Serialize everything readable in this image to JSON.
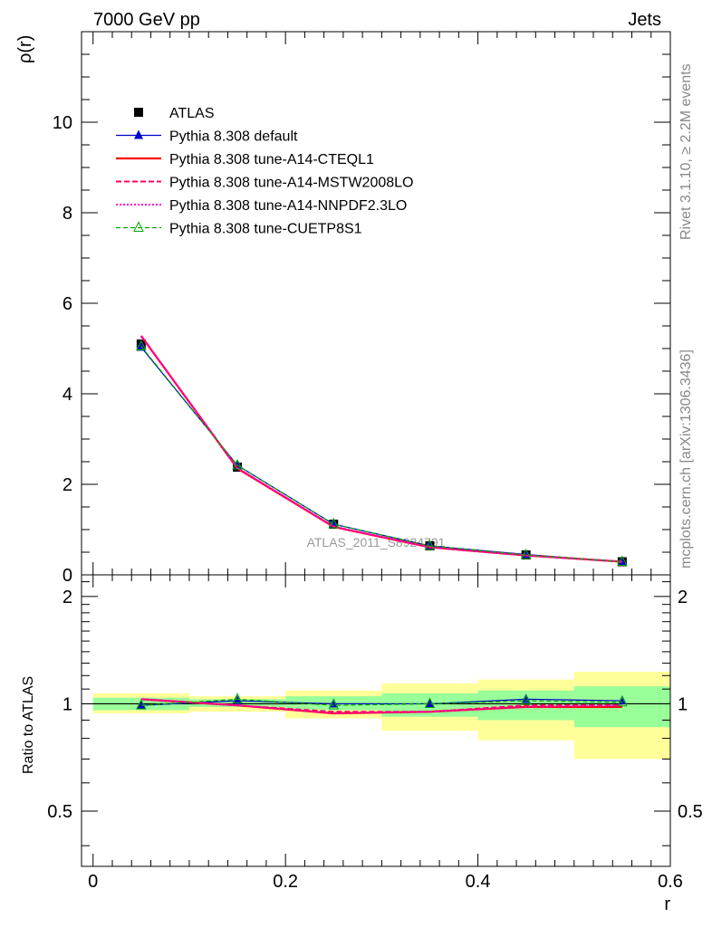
{
  "header": {
    "left": "7000 GeV pp",
    "right": "Jets"
  },
  "side_labels": {
    "rivet": "Rivet 3.1.10, ≥ 2.2M events",
    "mcplots": "mcplots.cern.ch [arXiv:1306.3436]"
  },
  "watermark": "ATLAS_2011_S8924791",
  "chart_data": [
    {
      "type": "line",
      "panel": "main",
      "ylabel": "ρ(r)",
      "xlim": [
        -0.012,
        0.6
      ],
      "ylim": [
        0,
        12
      ],
      "yticks": [
        0,
        2,
        4,
        6,
        8,
        10
      ],
      "ytick_labels": [
        "0",
        "2",
        "4",
        "6",
        "8",
        "10"
      ],
      "x": [
        0.05,
        0.15,
        0.25,
        0.35,
        0.45,
        0.55
      ],
      "series": [
        {
          "name": "ATLAS",
          "color": "#000000",
          "marker": "square",
          "line": "none",
          "values": [
            5.1,
            2.38,
            1.12,
            0.64,
            0.44,
            0.29
          ]
        },
        {
          "name": "Pythia 8.308 default",
          "color": "#0000cc",
          "marker": "triangle",
          "line": "solid",
          "values": [
            5.03,
            2.42,
            1.12,
            0.64,
            0.45,
            0.29
          ]
        },
        {
          "name": "Pythia 8.308 tune-A14-CTEQL1",
          "color": "#ff0000",
          "marker": "none",
          "line": "solid-thick",
          "values": [
            5.28,
            2.35,
            1.06,
            0.61,
            0.43,
            0.29
          ]
        },
        {
          "name": "Pythia 8.308 tune-A14-MSTW2008LO",
          "color": "#ff0066",
          "marker": "none",
          "line": "dashed",
          "values": [
            5.28,
            2.36,
            1.06,
            0.61,
            0.43,
            0.29
          ]
        },
        {
          "name": "Pythia 8.308 tune-A14-NNPDF2.3LO",
          "color": "#ff00cc",
          "marker": "none",
          "line": "dotted",
          "values": [
            5.27,
            2.36,
            1.07,
            0.61,
            0.43,
            0.29
          ]
        },
        {
          "name": "Pythia 8.308 tune-CUETP8S1",
          "color": "#00aa00",
          "marker": "open-triangle",
          "line": "dashed-thin",
          "values": [
            5.05,
            2.42,
            1.12,
            0.64,
            0.44,
            0.29
          ]
        }
      ]
    },
    {
      "type": "line",
      "panel": "ratio",
      "ylabel": "Ratio to ATLAS",
      "xlabel": "r",
      "xlim": [
        -0.012,
        0.6
      ],
      "ylim": [
        0.35,
        2.3
      ],
      "log_y": true,
      "xticks": [
        0,
        0.2,
        0.4,
        0.6
      ],
      "xtick_labels": [
        "0",
        "0.2",
        "0.4",
        "0.6"
      ],
      "yticks": [
        0.5,
        1,
        2
      ],
      "ytick_labels": [
        "0.5",
        "1",
        "2"
      ],
      "x": [
        0.05,
        0.15,
        0.25,
        0.35,
        0.45,
        0.55
      ],
      "bands": {
        "x_edges": [
          0.0,
          0.1,
          0.2,
          0.3,
          0.4,
          0.5,
          0.6
        ],
        "yellow": [
          [
            0.94,
            1.07
          ],
          [
            0.95,
            1.05
          ],
          [
            0.91,
            1.09
          ],
          [
            0.84,
            1.14
          ],
          [
            0.79,
            1.17
          ],
          [
            0.7,
            1.23
          ]
        ],
        "green": [
          [
            0.96,
            1.04
          ],
          [
            0.98,
            1.03
          ],
          [
            0.96,
            1.05
          ],
          [
            0.92,
            1.07
          ],
          [
            0.9,
            1.09
          ],
          [
            0.86,
            1.12
          ]
        ]
      },
      "series": [
        {
          "name": "Pythia 8.308 default",
          "color": "#0000cc",
          "marker": "triangle",
          "line": "solid",
          "values": [
            0.99,
            1.02,
            1.0,
            1.0,
            1.03,
            1.02
          ]
        },
        {
          "name": "Pythia 8.308 tune-A14-CTEQL1",
          "color": "#ff0000",
          "marker": "none",
          "line": "solid-thick",
          "values": [
            1.03,
            0.99,
            0.94,
            0.95,
            0.98,
            0.98
          ]
        },
        {
          "name": "Pythia 8.308 tune-A14-MSTW2008LO",
          "color": "#ff0066",
          "marker": "none",
          "line": "dashed",
          "values": [
            1.03,
            0.99,
            0.95,
            0.95,
            0.99,
            0.99
          ]
        },
        {
          "name": "Pythia 8.308 tune-A14-NNPDF2.3LO",
          "color": "#ff00cc",
          "marker": "none",
          "line": "dotted",
          "values": [
            1.03,
            0.99,
            0.94,
            0.95,
            0.98,
            0.99
          ]
        },
        {
          "name": "Pythia 8.308 tune-CUETP8S1",
          "color": "#00aa00",
          "marker": "open-triangle",
          "line": "dashed-thin",
          "values": [
            0.99,
            1.03,
            0.99,
            1.0,
            1.02,
            1.01
          ]
        }
      ]
    }
  ]
}
